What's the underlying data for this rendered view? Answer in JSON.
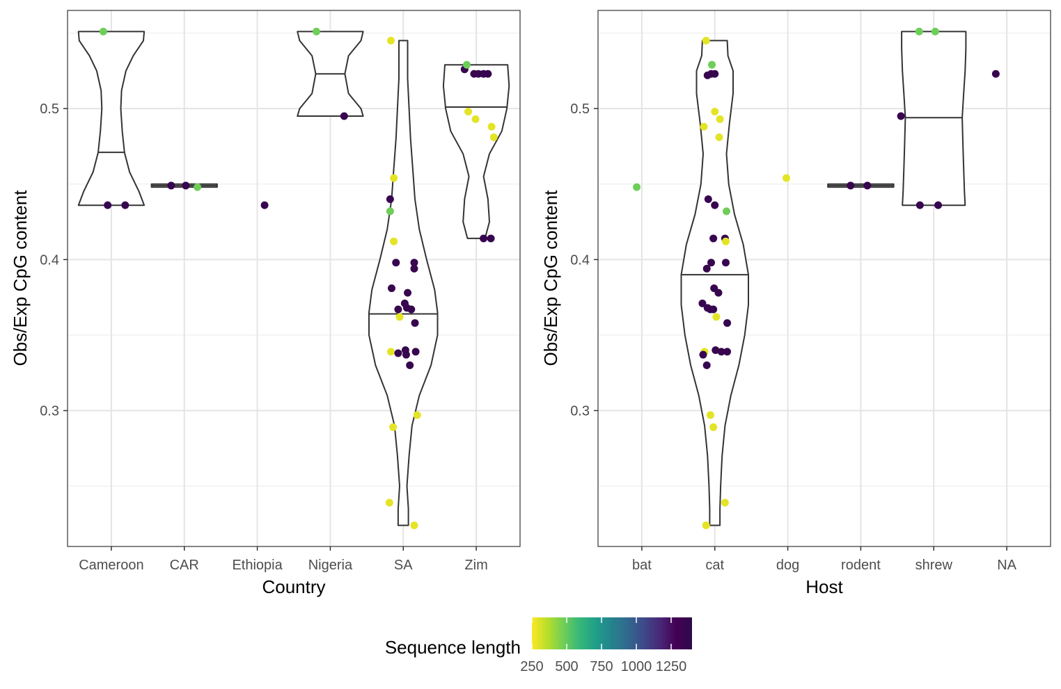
{
  "chart_data": [
    {
      "type": "violin",
      "xlabel": "Country",
      "ylabel": "Obs/Exp CpG content",
      "categories": [
        "Cameroon",
        "CAR",
        "Ethiopia",
        "Nigeria",
        "SA",
        "Zim"
      ],
      "ylim": [
        0.21,
        0.565
      ],
      "yticks": [
        0.3,
        0.4,
        0.5
      ],
      "ytick_labels": [
        "0.3",
        "0.4",
        "0.5"
      ],
      "grid": true,
      "violins": [
        {
          "category": "Cameroon",
          "min": 0.436,
          "max": 0.551,
          "median": 0.471,
          "profile": [
            [
              0.436,
              0.45
            ],
            [
              0.445,
              0.38
            ],
            [
              0.458,
              0.25
            ],
            [
              0.471,
              0.18
            ],
            [
              0.485,
              0.15
            ],
            [
              0.5,
              0.13
            ],
            [
              0.512,
              0.14
            ],
            [
              0.525,
              0.2
            ],
            [
              0.535,
              0.3
            ],
            [
              0.545,
              0.44
            ],
            [
              0.551,
              0.45
            ]
          ]
        },
        {
          "category": "CAR",
          "min": 0.448,
          "max": 0.45,
          "median": 0.449,
          "profile": [
            [
              0.448,
              0.45
            ],
            [
              0.449,
              0.45
            ],
            [
              0.45,
              0.45
            ]
          ]
        },
        {
          "category": "Nigeria",
          "min": 0.495,
          "max": 0.551,
          "median": 0.523,
          "profile": [
            [
              0.495,
              0.45
            ],
            [
              0.5,
              0.42
            ],
            [
              0.51,
              0.25
            ],
            [
              0.523,
              0.2
            ],
            [
              0.535,
              0.25
            ],
            [
              0.545,
              0.42
            ],
            [
              0.551,
              0.45
            ]
          ]
        },
        {
          "category": "SA",
          "min": 0.224,
          "max": 0.545,
          "median": 0.364,
          "profile": [
            [
              0.224,
              0.07
            ],
            [
              0.235,
              0.07
            ],
            [
              0.25,
              0.05
            ],
            [
              0.27,
              0.08
            ],
            [
              0.29,
              0.12
            ],
            [
              0.31,
              0.22
            ],
            [
              0.33,
              0.38
            ],
            [
              0.35,
              0.47
            ],
            [
              0.365,
              0.47
            ],
            [
              0.38,
              0.43
            ],
            [
              0.4,
              0.32
            ],
            [
              0.42,
              0.22
            ],
            [
              0.44,
              0.16
            ],
            [
              0.46,
              0.13
            ],
            [
              0.48,
              0.1
            ],
            [
              0.5,
              0.08
            ],
            [
              0.52,
              0.06
            ],
            [
              0.545,
              0.06
            ]
          ]
        },
        {
          "category": "Zim",
          "min": 0.414,
          "max": 0.529,
          "median": 0.501,
          "profile": [
            [
              0.414,
              0.12
            ],
            [
              0.425,
              0.18
            ],
            [
              0.44,
              0.16
            ],
            [
              0.455,
              0.1
            ],
            [
              0.47,
              0.18
            ],
            [
              0.485,
              0.35
            ],
            [
              0.5,
              0.42
            ],
            [
              0.515,
              0.45
            ],
            [
              0.529,
              0.43
            ]
          ]
        }
      ],
      "points": [
        {
          "x": "Cameroon",
          "jitter": -0.11,
          "y": 0.551,
          "length": 480
        },
        {
          "x": "Cameroon",
          "jitter": -0.05,
          "y": 0.436,
          "length": 1350
        },
        {
          "x": "Cameroon",
          "jitter": 0.19,
          "y": 0.436,
          "length": 1350
        },
        {
          "x": "CAR",
          "jitter": -0.18,
          "y": 0.449,
          "length": 1350
        },
        {
          "x": "CAR",
          "jitter": 0.02,
          "y": 0.449,
          "length": 1350
        },
        {
          "x": "CAR",
          "jitter": 0.18,
          "y": 0.448,
          "length": 480
        },
        {
          "x": "Ethiopia",
          "jitter": 0.1,
          "y": 0.436,
          "length": 1350
        },
        {
          "x": "Nigeria",
          "jitter": -0.19,
          "y": 0.551,
          "length": 480
        },
        {
          "x": "Nigeria",
          "jitter": 0.19,
          "y": 0.495,
          "length": 1350
        },
        {
          "x": "SA",
          "jitter": -0.17,
          "y": 0.545,
          "length": 290
        },
        {
          "x": "SA",
          "jitter": -0.13,
          "y": 0.454,
          "length": 290
        },
        {
          "x": "SA",
          "jitter": -0.18,
          "y": 0.44,
          "length": 1350
        },
        {
          "x": "SA",
          "jitter": -0.18,
          "y": 0.432,
          "length": 480
        },
        {
          "x": "SA",
          "jitter": -0.13,
          "y": 0.412,
          "length": 290
        },
        {
          "x": "SA",
          "jitter": -0.1,
          "y": 0.398,
          "length": 1350
        },
        {
          "x": "SA",
          "jitter": 0.15,
          "y": 0.398,
          "length": 1350
        },
        {
          "x": "SA",
          "jitter": 0.15,
          "y": 0.394,
          "length": 1350
        },
        {
          "x": "SA",
          "jitter": -0.16,
          "y": 0.381,
          "length": 1350
        },
        {
          "x": "SA",
          "jitter": 0.06,
          "y": 0.378,
          "length": 1350
        },
        {
          "x": "SA",
          "jitter": 0.02,
          "y": 0.371,
          "length": 1350
        },
        {
          "x": "SA",
          "jitter": 0.05,
          "y": 0.368,
          "length": 1350
        },
        {
          "x": "SA",
          "jitter": -0.07,
          "y": 0.367,
          "length": 1350
        },
        {
          "x": "SA",
          "jitter": 0.11,
          "y": 0.367,
          "length": 1350
        },
        {
          "x": "SA",
          "jitter": -0.05,
          "y": 0.362,
          "length": 290
        },
        {
          "x": "SA",
          "jitter": 0.16,
          "y": 0.358,
          "length": 1350
        },
        {
          "x": "SA",
          "jitter": -0.17,
          "y": 0.339,
          "length": 290
        },
        {
          "x": "SA",
          "jitter": -0.07,
          "y": 0.338,
          "length": 1350
        },
        {
          "x": "SA",
          "jitter": 0.03,
          "y": 0.34,
          "length": 1350
        },
        {
          "x": "SA",
          "jitter": 0.04,
          "y": 0.337,
          "length": 1350
        },
        {
          "x": "SA",
          "jitter": 0.17,
          "y": 0.339,
          "length": 1350
        },
        {
          "x": "SA",
          "jitter": 0.09,
          "y": 0.33,
          "length": 1350
        },
        {
          "x": "SA",
          "jitter": 0.19,
          "y": 0.297,
          "length": 290
        },
        {
          "x": "SA",
          "jitter": -0.14,
          "y": 0.289,
          "length": 290
        },
        {
          "x": "SA",
          "jitter": -0.19,
          "y": 0.239,
          "length": 290
        },
        {
          "x": "SA",
          "jitter": 0.15,
          "y": 0.224,
          "length": 290
        },
        {
          "x": "Zim",
          "jitter": -0.16,
          "y": 0.526,
          "length": 1350
        },
        {
          "x": "Zim",
          "jitter": -0.13,
          "y": 0.529,
          "length": 480
        },
        {
          "x": "Zim",
          "jitter": -0.03,
          "y": 0.523,
          "length": 1350
        },
        {
          "x": "Zim",
          "jitter": 0.03,
          "y": 0.523,
          "length": 1350
        },
        {
          "x": "Zim",
          "jitter": 0.1,
          "y": 0.523,
          "length": 1350
        },
        {
          "x": "Zim",
          "jitter": 0.16,
          "y": 0.523,
          "length": 1350
        },
        {
          "x": "Zim",
          "jitter": -0.11,
          "y": 0.498,
          "length": 290
        },
        {
          "x": "Zim",
          "jitter": -0.01,
          "y": 0.493,
          "length": 290
        },
        {
          "x": "Zim",
          "jitter": 0.21,
          "y": 0.488,
          "length": 290
        },
        {
          "x": "Zim",
          "jitter": 0.24,
          "y": 0.481,
          "length": 290
        },
        {
          "x": "Zim",
          "jitter": 0.1,
          "y": 0.414,
          "length": 1350
        },
        {
          "x": "Zim",
          "jitter": 0.2,
          "y": 0.414,
          "length": 1350
        }
      ]
    },
    {
      "type": "violin",
      "xlabel": "Host",
      "ylabel": "Obs/Exp CpG content",
      "categories": [
        "bat",
        "cat",
        "dog",
        "rodent",
        "shrew",
        "NA"
      ],
      "ylim": [
        0.21,
        0.565
      ],
      "yticks": [
        0.3,
        0.4,
        0.5
      ],
      "ytick_labels": [
        "0.3",
        "0.4",
        "0.5"
      ],
      "grid": true,
      "violins": [
        {
          "category": "cat",
          "min": 0.224,
          "max": 0.545,
          "median": 0.39,
          "profile": [
            [
              0.224,
              0.07
            ],
            [
              0.235,
              0.07
            ],
            [
              0.25,
              0.08
            ],
            [
              0.27,
              0.1
            ],
            [
              0.29,
              0.14
            ],
            [
              0.31,
              0.22
            ],
            [
              0.33,
              0.33
            ],
            [
              0.35,
              0.41
            ],
            [
              0.37,
              0.46
            ],
            [
              0.39,
              0.46
            ],
            [
              0.41,
              0.39
            ],
            [
              0.43,
              0.27
            ],
            [
              0.45,
              0.19
            ],
            [
              0.47,
              0.16
            ],
            [
              0.49,
              0.2
            ],
            [
              0.51,
              0.25
            ],
            [
              0.525,
              0.25
            ],
            [
              0.535,
              0.18
            ],
            [
              0.545,
              0.17
            ]
          ]
        },
        {
          "category": "rodent",
          "min": 0.448,
          "max": 0.45,
          "median": 0.449,
          "profile": [
            [
              0.448,
              0.45
            ],
            [
              0.449,
              0.45
            ],
            [
              0.45,
              0.45
            ]
          ]
        },
        {
          "category": "shrew",
          "min": 0.436,
          "max": 0.551,
          "median": 0.494,
          "profile": [
            [
              0.436,
              0.43
            ],
            [
              0.445,
              0.42
            ],
            [
              0.46,
              0.41
            ],
            [
              0.475,
              0.4
            ],
            [
              0.494,
              0.39
            ],
            [
              0.51,
              0.41
            ],
            [
              0.525,
              0.43
            ],
            [
              0.54,
              0.44
            ],
            [
              0.551,
              0.44
            ]
          ]
        }
      ],
      "points": [
        {
          "x": "bat",
          "jitter": -0.07,
          "y": 0.448,
          "length": 480
        },
        {
          "x": "cat",
          "jitter": -0.12,
          "y": 0.545,
          "length": 290
        },
        {
          "x": "cat",
          "jitter": -0.04,
          "y": 0.529,
          "length": 480
        },
        {
          "x": "cat",
          "jitter": -0.1,
          "y": 0.522,
          "length": 1350
        },
        {
          "x": "cat",
          "jitter": -0.05,
          "y": 0.523,
          "length": 1350
        },
        {
          "x": "cat",
          "jitter": 0.0,
          "y": 0.523,
          "length": 1350
        },
        {
          "x": "cat",
          "jitter": 0.0,
          "y": 0.498,
          "length": 290
        },
        {
          "x": "cat",
          "jitter": 0.07,
          "y": 0.493,
          "length": 290
        },
        {
          "x": "cat",
          "jitter": -0.15,
          "y": 0.488,
          "length": 290
        },
        {
          "x": "cat",
          "jitter": 0.06,
          "y": 0.481,
          "length": 290
        },
        {
          "x": "cat",
          "jitter": -0.09,
          "y": 0.44,
          "length": 1350
        },
        {
          "x": "cat",
          "jitter": 0.0,
          "y": 0.436,
          "length": 1350
        },
        {
          "x": "cat",
          "jitter": 0.16,
          "y": 0.432,
          "length": 480
        },
        {
          "x": "cat",
          "jitter": -0.02,
          "y": 0.414,
          "length": 1350
        },
        {
          "x": "cat",
          "jitter": 0.14,
          "y": 0.414,
          "length": 1350
        },
        {
          "x": "cat",
          "jitter": 0.15,
          "y": 0.412,
          "length": 290
        },
        {
          "x": "cat",
          "jitter": -0.05,
          "y": 0.398,
          "length": 1350
        },
        {
          "x": "cat",
          "jitter": 0.15,
          "y": 0.398,
          "length": 1350
        },
        {
          "x": "cat",
          "jitter": -0.11,
          "y": 0.394,
          "length": 1350
        },
        {
          "x": "cat",
          "jitter": -0.01,
          "y": 0.381,
          "length": 1350
        },
        {
          "x": "cat",
          "jitter": 0.05,
          "y": 0.378,
          "length": 1350
        },
        {
          "x": "cat",
          "jitter": -0.17,
          "y": 0.371,
          "length": 1350
        },
        {
          "x": "cat",
          "jitter": -0.1,
          "y": 0.368,
          "length": 1350
        },
        {
          "x": "cat",
          "jitter": -0.06,
          "y": 0.367,
          "length": 1350
        },
        {
          "x": "cat",
          "jitter": -0.02,
          "y": 0.367,
          "length": 1350
        },
        {
          "x": "cat",
          "jitter": 0.02,
          "y": 0.362,
          "length": 290
        },
        {
          "x": "cat",
          "jitter": 0.17,
          "y": 0.358,
          "length": 1350
        },
        {
          "x": "cat",
          "jitter": -0.14,
          "y": 0.339,
          "length": 290
        },
        {
          "x": "cat",
          "jitter": -0.16,
          "y": 0.337,
          "length": 1350
        },
        {
          "x": "cat",
          "jitter": 0.01,
          "y": 0.34,
          "length": 1350
        },
        {
          "x": "cat",
          "jitter": 0.09,
          "y": 0.339,
          "length": 1350
        },
        {
          "x": "cat",
          "jitter": 0.17,
          "y": 0.339,
          "length": 1350
        },
        {
          "x": "cat",
          "jitter": -0.11,
          "y": 0.33,
          "length": 1350
        },
        {
          "x": "cat",
          "jitter": -0.06,
          "y": 0.297,
          "length": 290
        },
        {
          "x": "cat",
          "jitter": -0.02,
          "y": 0.289,
          "length": 290
        },
        {
          "x": "cat",
          "jitter": 0.14,
          "y": 0.239,
          "length": 290
        },
        {
          "x": "cat",
          "jitter": -0.12,
          "y": 0.224,
          "length": 290
        },
        {
          "x": "dog",
          "jitter": -0.02,
          "y": 0.454,
          "length": 290
        },
        {
          "x": "rodent",
          "jitter": -0.14,
          "y": 0.449,
          "length": 1350
        },
        {
          "x": "rodent",
          "jitter": 0.09,
          "y": 0.449,
          "length": 1350
        },
        {
          "x": "shrew",
          "jitter": -0.2,
          "y": 0.551,
          "length": 480
        },
        {
          "x": "shrew",
          "jitter": 0.02,
          "y": 0.551,
          "length": 480
        },
        {
          "x": "shrew",
          "jitter": -0.45,
          "y": 0.495,
          "length": 1350
        },
        {
          "x": "shrew",
          "jitter": -0.19,
          "y": 0.436,
          "length": 1350
        },
        {
          "x": "shrew",
          "jitter": 0.06,
          "y": 0.436,
          "length": 1350
        },
        {
          "x": "NA",
          "jitter": -0.15,
          "y": 0.523,
          "length": 1350
        }
      ]
    }
  ],
  "legend": {
    "title": "Sequence length",
    "position": "bottom",
    "range": [
      250,
      1400
    ],
    "ticks": [
      250,
      500,
      750,
      1000,
      1250
    ],
    "tick_labels": [
      "250",
      "500",
      "750",
      "1000",
      "1250"
    ],
    "colorscale": "viridis",
    "colors": [
      "#fde725",
      "#b5de2b",
      "#6ece58",
      "#35b779",
      "#1f9e89",
      "#26828e",
      "#31688e",
      "#3e4989",
      "#482878",
      "#440154",
      "#2d0a4b"
    ]
  }
}
